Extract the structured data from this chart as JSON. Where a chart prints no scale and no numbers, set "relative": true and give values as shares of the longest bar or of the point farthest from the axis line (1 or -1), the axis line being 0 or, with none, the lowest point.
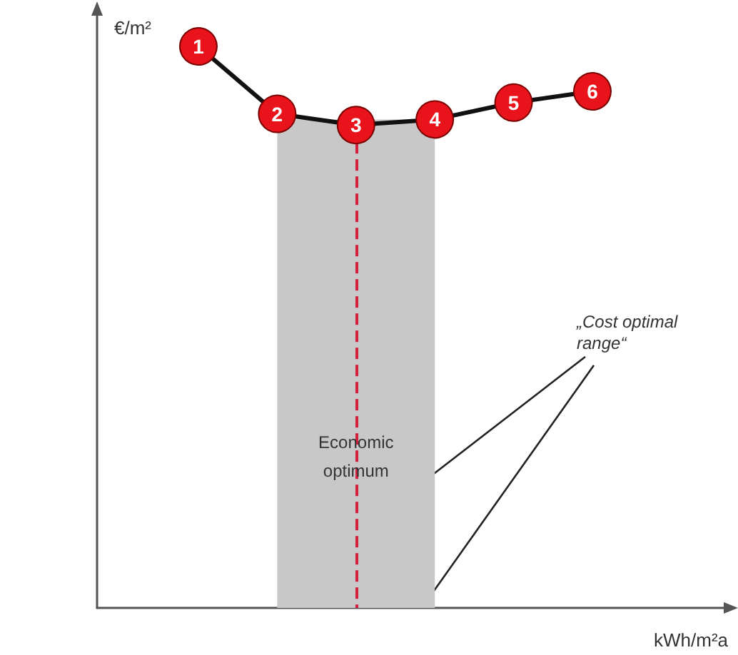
{
  "chart_data": {
    "type": "line",
    "relative": true,
    "xlabel": "kWh/m²a",
    "ylabel": "€/m²",
    "categories": [
      "1",
      "2",
      "3",
      "4",
      "5",
      "6"
    ],
    "series": [
      {
        "color": "#e8131b",
        "values": [
          1,
          0.88,
          0.86,
          0.87,
          0.9,
          0.92
        ]
      }
    ],
    "marker": "circle",
    "tick_labels": false,
    "grid": false,
    "bands": [
      {
        "axis": "x",
        "from": "2",
        "to": "4",
        "color": "#c8c8c8"
      }
    ],
    "ref_lines": [
      {
        "axis": "x",
        "value": "3",
        "color": "#d4203c",
        "line_style": "dashed"
      }
    ],
    "annotations": [
      "„Cost optimal range“",
      "Economic optimum"
    ]
  }
}
